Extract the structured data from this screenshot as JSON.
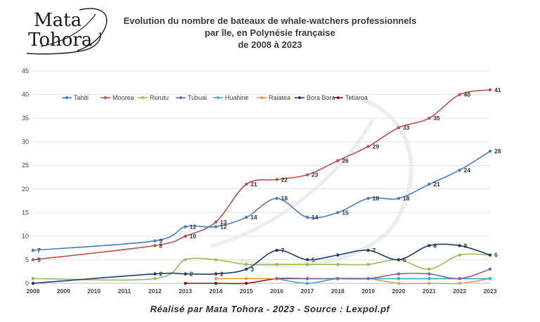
{
  "logo": {
    "line1": "Mata",
    "line2": "Tohora"
  },
  "footer": "Réalisé par Mata Tohora - 2023 - Source : Lexpol.pf",
  "colors": {
    "Tahiti": "#4a7cc2",
    "Moorea": "#c0504d",
    "Rurutu": "#9bbb59",
    "Tubuai": "#8064a2",
    "Huahine": "#4bacc6",
    "Raiatea": "#f79646",
    "Bora Bora": "#1f3c6e",
    "Tetiaroa": "#7b1c1c"
  },
  "chart_data": {
    "type": "line",
    "title": [
      "Evolution du nombre de bateaux de whale-watchers professionnels",
      "par île, en Polynésie française",
      "de 2008 à 2023"
    ],
    "xlabel": "",
    "ylabel": "",
    "xlim": [
      2008,
      2023
    ],
    "ylim": [
      0,
      45
    ],
    "yticks": [
      0,
      5,
      10,
      15,
      20,
      25,
      30,
      35,
      40,
      45
    ],
    "xticks": [
      2008,
      2009,
      2010,
      2011,
      2012,
      2013,
      2014,
      2015,
      2016,
      2017,
      2018,
      2019,
      2020,
      2021,
      2022,
      2023
    ],
    "grid": "horizontal",
    "legend": "top-left",
    "series": [
      {
        "name": "Tahiti",
        "x": [
          2008,
          2012,
          2013,
          2014,
          2015,
          2016,
          2017,
          2018,
          2019,
          2020,
          2021,
          2022,
          2023
        ],
        "values": [
          7,
          9,
          12,
          12,
          14,
          18,
          14,
          15,
          18,
          18,
          21,
          24,
          28
        ],
        "labels": [
          "7",
          "9",
          "12",
          "12",
          "14",
          "18",
          "14",
          "15",
          "18",
          "18",
          "21",
          "24",
          "28"
        ]
      },
      {
        "name": "Moorea",
        "x": [
          2008,
          2012,
          2013,
          2014,
          2015,
          2016,
          2017,
          2018,
          2019,
          2020,
          2021,
          2022,
          2023
        ],
        "values": [
          5,
          8,
          10,
          13,
          21,
          22,
          23,
          26,
          29,
          33,
          35,
          40,
          41
        ],
        "labels": [
          "5",
          "8",
          "10",
          "13",
          "21",
          "22",
          "23",
          "26",
          "29",
          "33",
          "35",
          "40",
          "41"
        ]
      },
      {
        "name": "Rurutu",
        "x": [
          2008,
          2012,
          2013,
          2014,
          2015,
          2016,
          2017,
          2018,
          2019,
          2020,
          2021,
          2022,
          2023
        ],
        "values": [
          1,
          1,
          5,
          5,
          4,
          4,
          4,
          4,
          4,
          5,
          3,
          6,
          6
        ],
        "labels": []
      },
      {
        "name": "Tubuai",
        "x": [
          2016,
          2017,
          2018,
          2019,
          2020,
          2021,
          2022,
          2023
        ],
        "values": [
          1,
          1,
          1,
          1,
          2,
          2,
          1,
          3
        ],
        "labels": []
      },
      {
        "name": "Huahine",
        "x": [
          2016,
          2017,
          2018,
          2019,
          2020,
          2021,
          2022,
          2023
        ],
        "values": [
          1,
          0,
          1,
          1,
          1,
          1,
          1,
          1
        ],
        "labels": []
      },
      {
        "name": "Raiatea",
        "x": [
          2014,
          2015,
          2016,
          2017,
          2018,
          2019,
          2020,
          2021,
          2022,
          2023
        ],
        "values": [
          1,
          1,
          1,
          1,
          1,
          1,
          0,
          0,
          0,
          1
        ],
        "labels": []
      },
      {
        "name": "Bora Bora",
        "x": [
          2008,
          2012,
          2013,
          2014,
          2015,
          2016,
          2017,
          2018,
          2019,
          2020,
          2021,
          2022,
          2023
        ],
        "values": [
          0,
          2,
          2,
          2,
          3,
          7,
          5,
          6,
          7,
          5,
          8,
          8,
          6
        ],
        "labels": [
          "",
          "2",
          "2",
          "2",
          "3",
          "7",
          "5",
          "",
          "7",
          "5",
          "8",
          "8",
          "6"
        ]
      },
      {
        "name": "Tetiaroa",
        "x": [
          2013,
          2014,
          2015,
          2016,
          2017,
          2018,
          2019,
          2020,
          2021,
          2022,
          2023
        ],
        "values": [
          0,
          0,
          0,
          1,
          1,
          1,
          1,
          1,
          1,
          1,
          1
        ],
        "labels": []
      }
    ]
  }
}
